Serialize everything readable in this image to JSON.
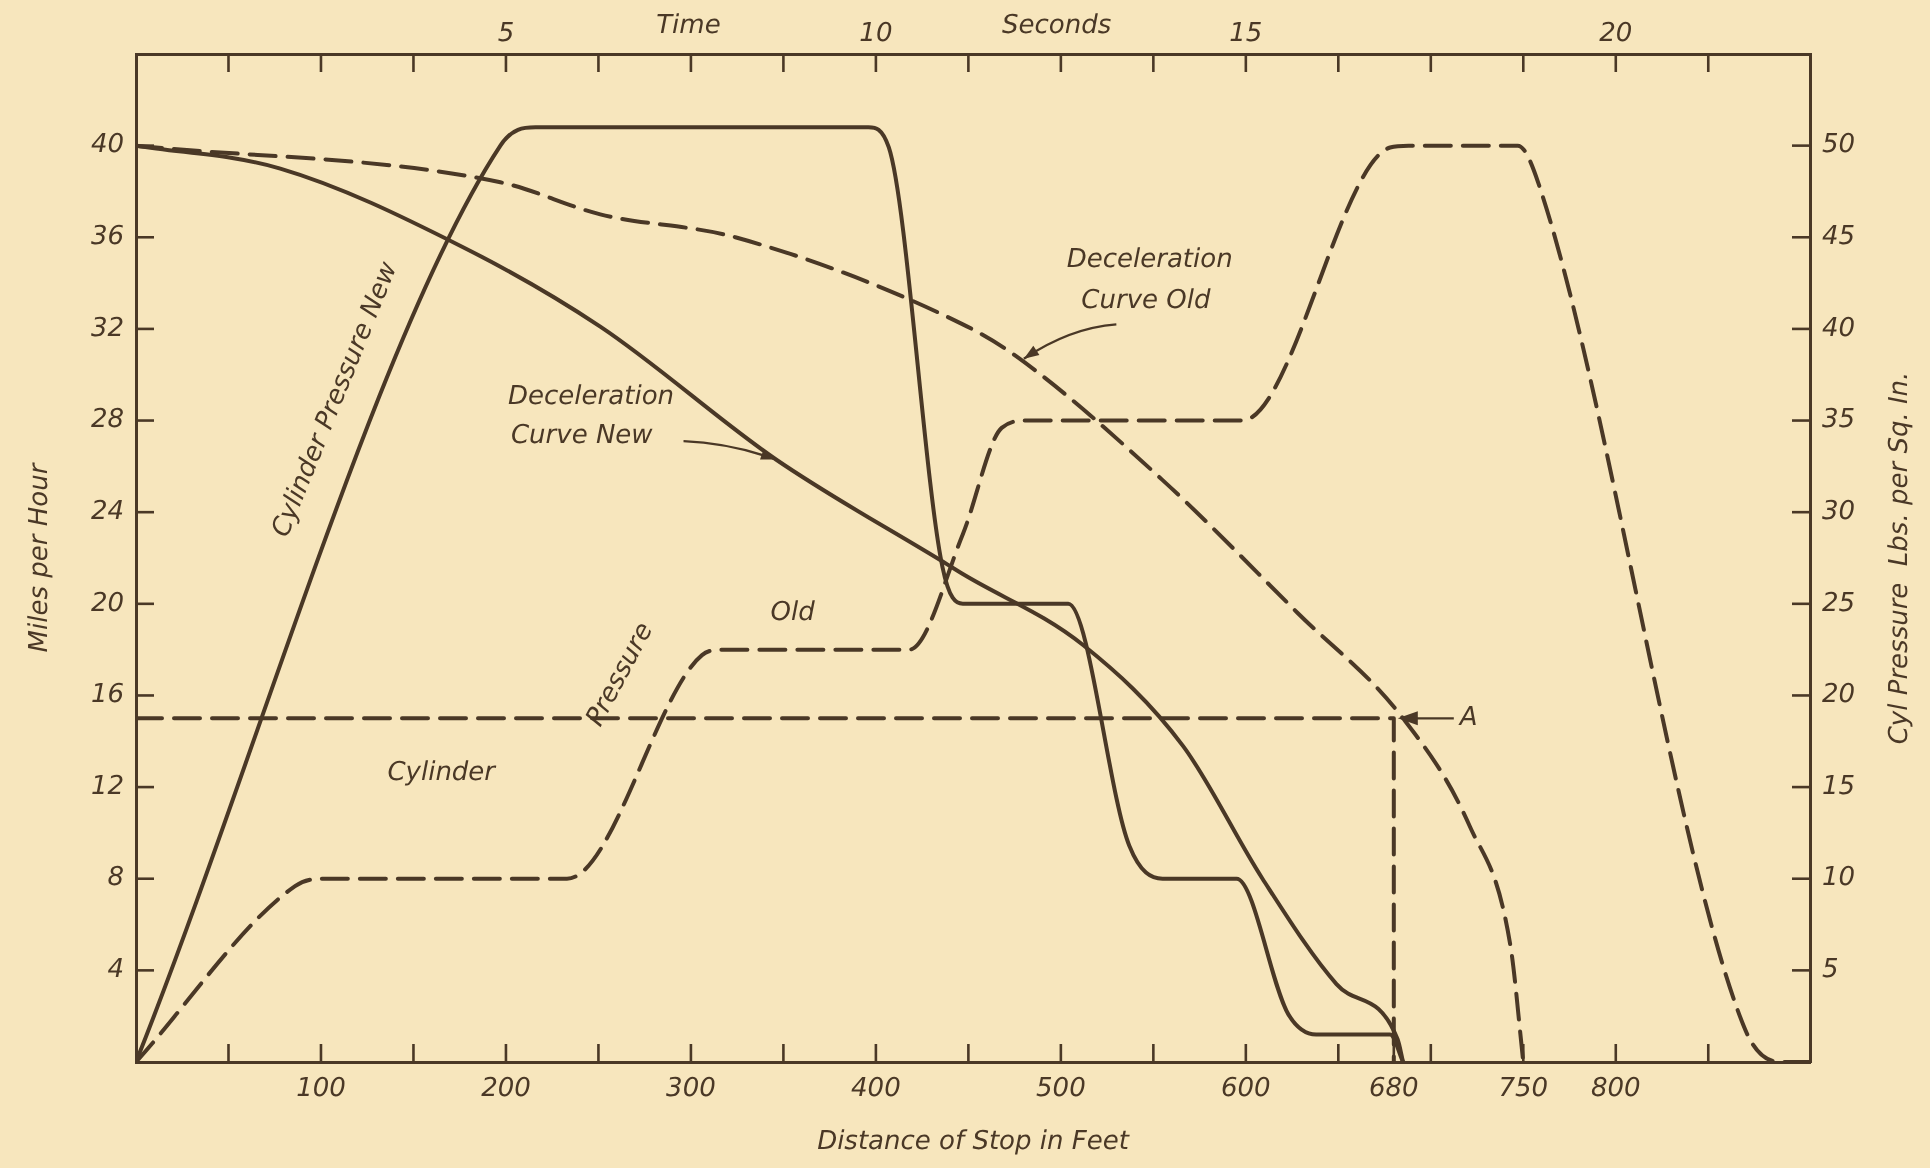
{
  "chart_data": {
    "type": "line",
    "xlabel": "Distance of Stop in Feet",
    "ylabel": "Miles per Hour",
    "y2label": "Cyl Pressure  Lbs. per Sq. In.",
    "x2label": "Time Seconds",
    "xlim": [
      0,
      905
    ],
    "ylim": [
      0,
      44
    ],
    "y2lim": [
      0,
      55
    ],
    "x2lim": [
      0,
      22.625
    ],
    "xticks": [
      {
        "value": 50,
        "label": null
      },
      100,
      {
        "value": 150,
        "label": null
      },
      200,
      {
        "value": 250,
        "label": null
      },
      300,
      {
        "value": 350,
        "label": null
      },
      400,
      {
        "value": 450,
        "label": null
      },
      500,
      {
        "value": 550,
        "label": null
      },
      600,
      {
        "value": 650,
        "label": null
      },
      680,
      {
        "value": 700,
        "label": null
      },
      750,
      800,
      {
        "value": 850,
        "label": null
      }
    ],
    "x2ticks": [
      {
        "value": 1.25,
        "label": null
      },
      {
        "value": 2.5,
        "label": null
      },
      {
        "value": 3.75,
        "label": null
      },
      5,
      {
        "value": 6.25,
        "label": null
      },
      {
        "value": 7.5,
        "label": null
      },
      {
        "value": 8.75,
        "label": null
      },
      10,
      {
        "value": 11.25,
        "label": null
      },
      {
        "value": 12.5,
        "label": null
      },
      {
        "value": 13.75,
        "label": null
      },
      15,
      {
        "value": 16.25,
        "label": null
      },
      {
        "value": 17.5,
        "label": null
      },
      {
        "value": 18.75,
        "label": null
      },
      20,
      {
        "value": 21.25,
        "label": null
      }
    ],
    "yticks": [
      4,
      8,
      12,
      16,
      20,
      24,
      28,
      32,
      36,
      40
    ],
    "y2ticks": [
      5,
      10,
      15,
      20,
      25,
      30,
      35,
      40,
      45,
      50
    ],
    "grid": false,
    "legend": false,
    "marker": "none",
    "series": [
      {
        "name": "Deceleration Curve New",
        "color": "#4a3826",
        "line_style": "solid",
        "x": [
          0,
          78,
          176,
          251,
          346,
          439,
          447,
          512,
          566,
          609,
          649,
          682,
          685
        ],
        "values": [
          40,
          39.0,
          35.6,
          32.1,
          26.3,
          21.7,
          21.3,
          18.2,
          13.8,
          8.0,
          3.4,
          1.0,
          0
        ]
      },
      {
        "name": "Deceleration Curve Old",
        "color": "#4a3826",
        "line_style": "dashed",
        "x": [
          0,
          197,
          251,
          324,
          447,
          476,
          555,
          628,
          685,
          721,
          743,
          750
        ],
        "values": [
          40,
          38.4,
          37.0,
          36.0,
          32.2,
          30.8,
          25.4,
          19.6,
          15.0,
          10.3,
          5.1,
          0
        ]
      },
      {
        "name": "Cylinder Pressure New",
        "color": "#4a3826",
        "line_style": "solid",
        "axis": "y2",
        "x": [
          0,
          197,
          216,
          396,
          407,
          436,
          447,
          504,
          537,
          555,
          595,
          623,
          638,
          678,
          685
        ],
        "values": [
          0,
          50.0,
          51,
          51,
          49.9,
          27.0,
          25,
          25,
          11.8,
          10,
          10,
          2.6,
          1.5,
          1.5,
          0
        ]
      },
      {
        "name": "Cylinder Pressure Old",
        "color": "#4a3826",
        "line_style": "dashed",
        "axis": "y2",
        "x": [
          0,
          86,
          100,
          233,
          306,
          317,
          418,
          447,
          468,
          482,
          598,
          678,
          688,
          747,
          758,
          869,
          890,
          905
        ],
        "values": [
          0,
          9.6,
          10,
          10,
          22.2,
          22.5,
          22.5,
          28.8,
          34.6,
          35,
          35,
          49.9,
          50,
          50,
          48.0,
          2.0,
          0,
          0
        ]
      },
      {
        "color": "#4a3826",
        "line_style": "dashed",
        "x": [
          0,
          680,
          680
        ],
        "values": [
          15,
          15,
          0
        ]
      }
    ],
    "annotations": [
      {
        "text": "A",
        "x": 680,
        "y": 15
      }
    ]
  }
}
